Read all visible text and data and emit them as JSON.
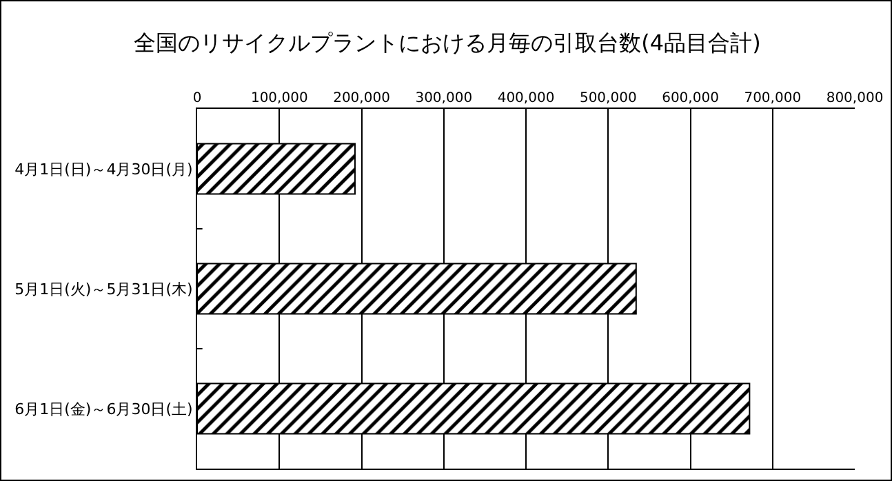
{
  "chart_data": {
    "type": "bar",
    "orientation": "horizontal",
    "title": "全国のリサイクルプラントにおける月毎の引取台数(4品目合計)",
    "categories": [
      "4月1日(日)～4月30日(月)",
      "5月1日(火)～5月31日(木)",
      "6月1日(金)～6月30日(土)"
    ],
    "values": [
      192000,
      534000,
      672000
    ],
    "color": "#000000",
    "xlim": [
      0,
      800000
    ],
    "xticks": [
      {
        "value": 0,
        "label": "0"
      },
      {
        "value": 100000,
        "label": "100,000"
      },
      {
        "value": 200000,
        "label": "200,000"
      },
      {
        "value": 300000,
        "label": "300,000"
      },
      {
        "value": 400000,
        "label": "400,000"
      },
      {
        "value": 500000,
        "label": "500,000"
      },
      {
        "value": 600000,
        "label": "600,000"
      },
      {
        "value": 700000,
        "label": "700,000"
      },
      {
        "value": 800000,
        "label": "800,000"
      }
    ],
    "grid": "x"
  }
}
